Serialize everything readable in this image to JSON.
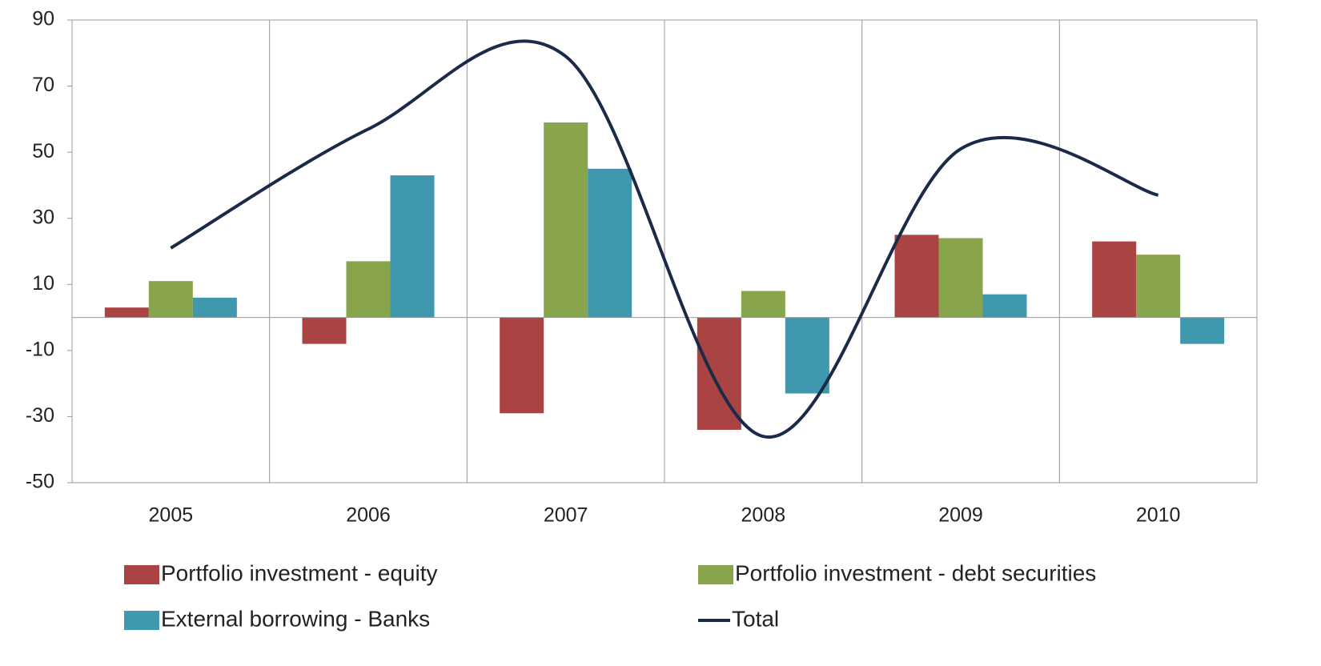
{
  "chart_data": {
    "type": "bar",
    "categories": [
      "2005",
      "2006",
      "2007",
      "2008",
      "2009",
      "2010"
    ],
    "series": [
      {
        "name": "Portfolio investment - equity",
        "color": "#a94442",
        "values": [
          3,
          -8,
          -29,
          -34,
          25,
          23
        ]
      },
      {
        "name": "Portfolio investment - debt securities",
        "color": "#88a54b",
        "values": [
          11,
          17,
          59,
          8,
          24,
          19
        ]
      },
      {
        "name": "External borrowing - Banks",
        "color": "#3f98ae",
        "values": [
          6,
          43,
          45,
          -23,
          7,
          -8
        ]
      },
      {
        "name": "Total",
        "type": "line",
        "color": "#1a2a48",
        "values": [
          21,
          57,
          79,
          -36,
          51,
          37
        ]
      }
    ],
    "ylim": [
      -50,
      90
    ],
    "yticks": [
      -50,
      -30,
      -10,
      10,
      30,
      50,
      70,
      90
    ],
    "legend": "bottom"
  }
}
